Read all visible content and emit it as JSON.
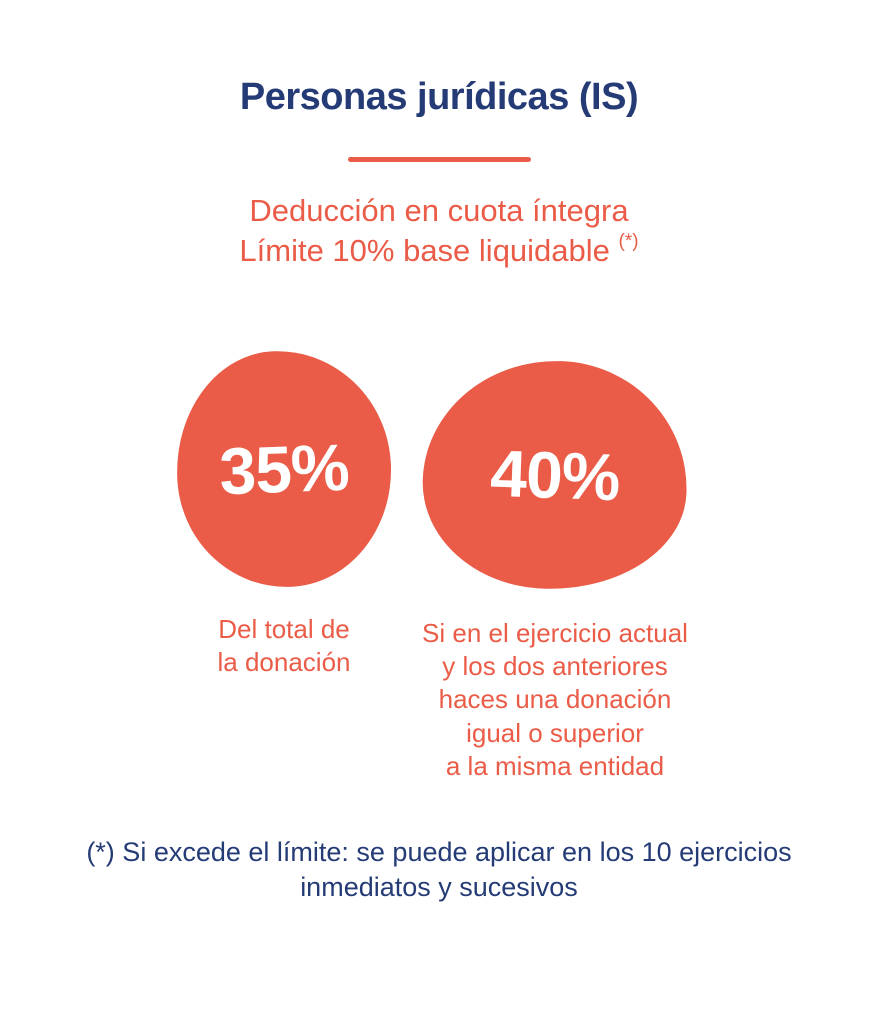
{
  "colors": {
    "navy": "#243B76",
    "orange": "#EA5C47",
    "background": "#FFFFFF",
    "percent_text": "#FFFFFF"
  },
  "header": {
    "title": "Personas jurídicas (IS)"
  },
  "subtitle": {
    "line1": "Deducción en cuota íntegra",
    "line2": "Límite 10% base liquidable",
    "footnote_marker": "(*)"
  },
  "stats": [
    {
      "value": "35%",
      "caption": [
        "Del total de",
        "la donación"
      ]
    },
    {
      "value": "40%",
      "caption": [
        "Si en el ejercicio actual",
        "y los dos anteriores",
        "haces una donación",
        "igual o superior",
        "a la misma entidad"
      ]
    }
  ],
  "footnote": {
    "lines": [
      "(*) Si excede el límite: se puede aplicar en los 10 ejercicios",
      "inmediatos y sucesivos"
    ]
  }
}
